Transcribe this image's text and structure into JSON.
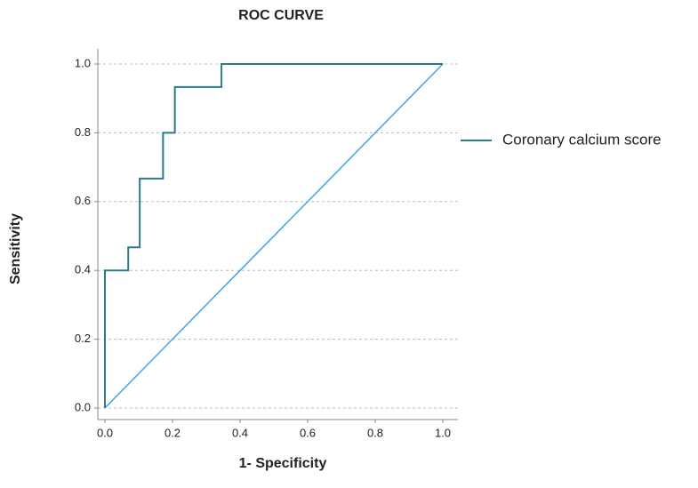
{
  "chart_data": {
    "type": "line",
    "title": "ROC CURVE",
    "x_label": "1- Specificity",
    "y_label": "Sensitivity",
    "series": [
      {
        "name": "Coronary calcium score",
        "color": "#2b7a87",
        "x": [
          0,
          0,
          0.069,
          0.069,
          0.103,
          0.103,
          0.172,
          0.172,
          0.207,
          0.207,
          0.345,
          0.345,
          1
        ],
        "values": [
          0,
          0.4,
          0.4,
          0.467,
          0.467,
          0.667,
          0.667,
          0.8,
          0.8,
          0.933,
          0.933,
          1,
          1
        ]
      }
    ],
    "reference_line": {
      "color": "#3fa4e6",
      "x": [
        0,
        1
      ],
      "values": [
        0,
        1
      ]
    },
    "xlim": [
      0,
      1
    ],
    "ylim": [
      0,
      1
    ],
    "xticks": [
      {
        "value": 0,
        "label": "0.0"
      },
      {
        "value": 0.2,
        "label": "0.2"
      },
      {
        "value": 0.4,
        "label": "0.4"
      },
      {
        "value": 0.6,
        "label": "0.6"
      },
      {
        "value": 0.8,
        "label": "0.8"
      },
      {
        "value": 1,
        "label": "1.0"
      }
    ],
    "yticks": [
      {
        "value": 0,
        "label": "0.0"
      },
      {
        "value": 0.2,
        "label": "0.2"
      },
      {
        "value": 0.4,
        "label": "0.4"
      },
      {
        "value": 0.6,
        "label": "0.6"
      },
      {
        "value": 0.8,
        "label": "0.8"
      },
      {
        "value": 1,
        "label": "1.0"
      }
    ],
    "grid": true,
    "legend": "right"
  }
}
